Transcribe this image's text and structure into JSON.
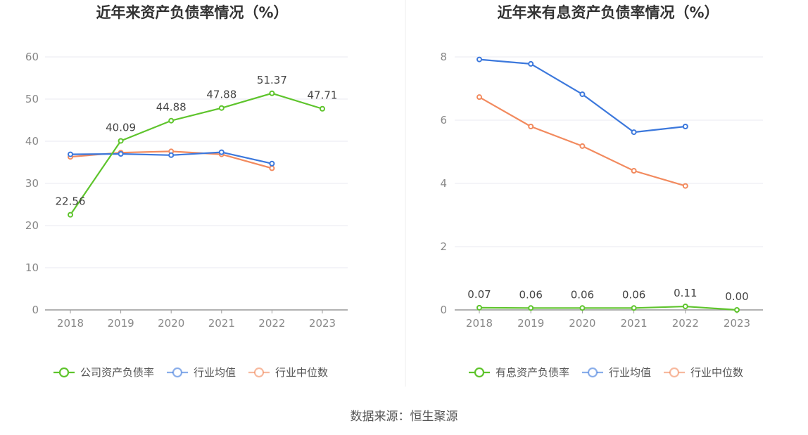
{
  "source": "数据来源：恒生聚源",
  "chart_data": [
    {
      "type": "line",
      "title": "近年来资产负债率情况（%）",
      "categories": [
        "2018",
        "2019",
        "2020",
        "2021",
        "2022",
        "2023"
      ],
      "ylim": [
        0,
        60
      ],
      "yticks": [
        0,
        10,
        20,
        30,
        40,
        50,
        60
      ],
      "grid": true,
      "legend_position": "bottom",
      "series": [
        {
          "name": "公司资产负债率",
          "color": "#5ec42c",
          "values": [
            22.56,
            40.09,
            44.88,
            47.88,
            51.37,
            47.71
          ],
          "labels": [
            "22.56",
            "40.09",
            "44.88",
            "47.88",
            "51.37",
            "47.71"
          ],
          "show_labels": true
        },
        {
          "name": "行业均值",
          "color": "#3c78dc",
          "values": [
            36.9,
            37.0,
            36.7,
            37.4,
            34.7,
            null
          ],
          "show_labels": false
        },
        {
          "name": "行业中位数",
          "color": "#f28a5e",
          "values": [
            36.3,
            37.3,
            37.6,
            36.9,
            33.6,
            null
          ],
          "show_labels": false
        }
      ]
    },
    {
      "type": "line",
      "title": "近年来有息资产负债率情况（%）",
      "categories": [
        "2018",
        "2019",
        "2020",
        "2021",
        "2022",
        "2023"
      ],
      "ylim": [
        0,
        8
      ],
      "yticks": [
        0,
        2,
        4,
        6,
        8
      ],
      "grid": true,
      "legend_position": "bottom",
      "series": [
        {
          "name": "有息资产负债率",
          "color": "#5ec42c",
          "values": [
            0.07,
            0.06,
            0.06,
            0.06,
            0.11,
            0.0
          ],
          "labels": [
            "0.07",
            "0.06",
            "0.06",
            "0.06",
            "0.11",
            "0.00"
          ],
          "show_labels": true
        },
        {
          "name": "行业均值",
          "color": "#3c78dc",
          "values": [
            7.92,
            7.78,
            6.82,
            5.62,
            5.8,
            null
          ],
          "show_labels": false
        },
        {
          "name": "行业中位数",
          "color": "#f28a5e",
          "values": [
            6.73,
            5.8,
            5.18,
            4.4,
            3.92,
            null
          ],
          "show_labels": false
        }
      ]
    }
  ]
}
